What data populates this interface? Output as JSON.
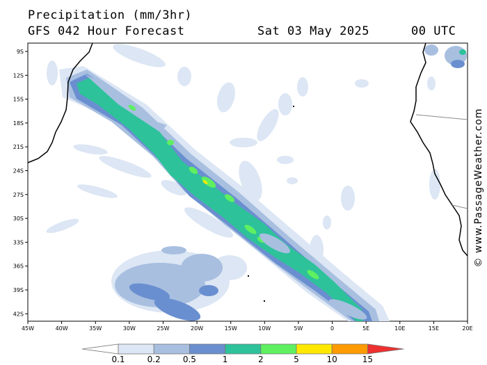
{
  "header": {
    "title": "Precipitation (mm/3hr)",
    "model": "GFS 042 Hour Forecast",
    "date": "Sat 03 May 2025",
    "time": "00 UTC"
  },
  "credit": "© www.PassageWeather.com",
  "latitudes": [
    "9S",
    "12S",
    "15S",
    "18S",
    "21S",
    "24S",
    "27S",
    "30S",
    "33S",
    "36S",
    "39S",
    "42S"
  ],
  "longitudes": [
    "45W",
    "40W",
    "35W",
    "30W",
    "25W",
    "20W",
    "15W",
    "10W",
    "5W",
    "0",
    "5E",
    "10E",
    "15E",
    "20E"
  ],
  "legend": {
    "labels": [
      "0.1",
      "0.2",
      "0.5",
      "1",
      "2",
      "5",
      "10",
      "15"
    ],
    "colors": [
      "#ffffff",
      "#dce6f4",
      "#a8bfe0",
      "#6a8fd0",
      "#2ec29a",
      "#5ef060",
      "#ffe800",
      "#ff9a00",
      "#ee3030"
    ]
  },
  "map_colors": {
    "very_light": "#dce6f4",
    "light": "#a8bfe0",
    "medium": "#6a8fd0",
    "teal": "#2ec29a",
    "green": "#5ef060",
    "yellow": "#ffe800",
    "coast": "#000000",
    "border": "#8a8a8a"
  }
}
